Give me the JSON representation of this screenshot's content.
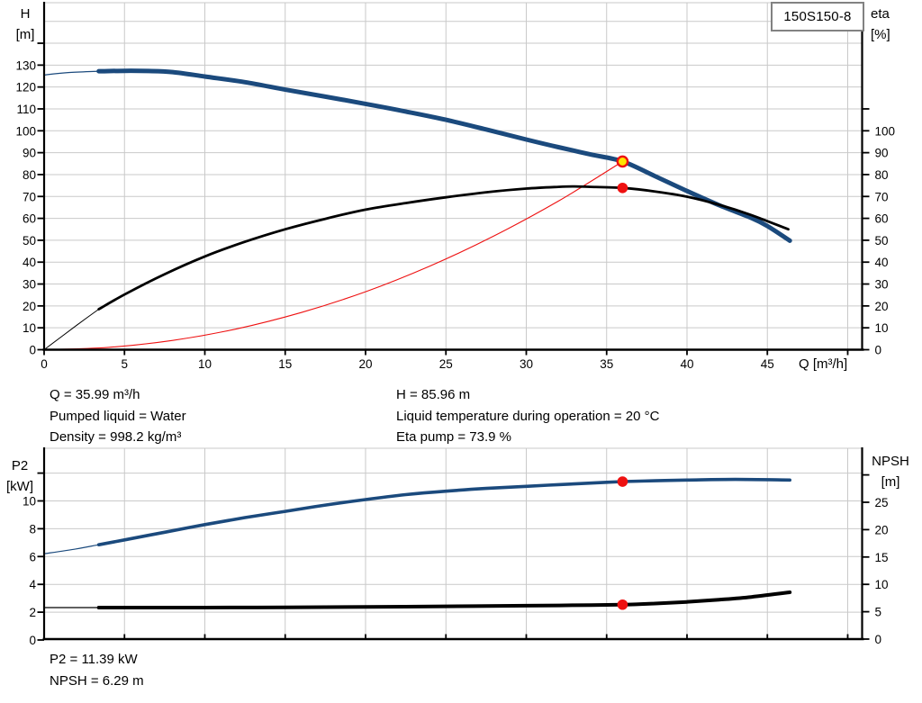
{
  "pump_type": "150S150-8",
  "annotations": {
    "left": [
      "Q = 35.99 m³/h",
      "Pumped liquid = Water",
      "Density = 998.2 kg/m³"
    ],
    "right": [
      "H = 85.96 m",
      "Liquid temperature during operation = 20 °C",
      "Eta pump = 73.9 %"
    ],
    "bottom": [
      "P2 = 11.39 kW",
      "NPSH = 6.29 m"
    ]
  },
  "duty_point": {
    "q_m3h": 35.99,
    "h_m": 85.96,
    "eta_pct": 73.9,
    "p2_kw": 11.39,
    "npsh_m": 6.29
  },
  "colors": {
    "curve_blue": "#1B4A7D",
    "curve_black": "#000000",
    "system_red": "#EE1111",
    "marker_yellow": "#FFE500",
    "grid": "#C9C9C9"
  },
  "chart_data": [
    {
      "name": "qh-eta-chart",
      "type": "line",
      "title": "150S150-8",
      "x_axis": {
        "label": "Q [m³/h]",
        "ticks": [
          0,
          5,
          10,
          15,
          20,
          25,
          30,
          35,
          40,
          45
        ],
        "unlabeled_ticks": [
          50
        ],
        "range": [
          0,
          50.9
        ]
      },
      "y_left": {
        "label": "H",
        "unit": "[m]",
        "ticks": [
          0,
          10,
          20,
          30,
          40,
          50,
          60,
          70,
          80,
          90,
          100,
          110,
          120,
          130
        ],
        "unlabeled_ticks": [
          140
        ],
        "range": [
          0,
          158
        ]
      },
      "y_right": {
        "label": "eta",
        "unit": "[%]",
        "ticks": [
          0,
          10,
          20,
          30,
          40,
          50,
          60,
          70,
          80,
          90,
          100
        ],
        "unlabeled_ticks": [
          110
        ],
        "range": [
          0,
          158
        ]
      },
      "series": [
        {
          "name": "system-curve",
          "axis": "left",
          "color": "#EE1111",
          "width": 1.1,
          "points": [
            [
              0,
              0
            ],
            [
              4,
              1.06
            ],
            [
              8,
              4.25
            ],
            [
              12,
              9.55
            ],
            [
              16,
              17.0
            ],
            [
              20,
              26.5
            ],
            [
              24,
              38.2
            ],
            [
              28,
              52.0
            ],
            [
              32,
              67.9
            ],
            [
              35.99,
              85.96
            ]
          ]
        },
        {
          "name": "head-curve",
          "axis": "left",
          "color": "#1B4A7D",
          "width": 5,
          "thin_width": 1.2,
          "thin_until": 3.4,
          "points": [
            [
              0,
              125.5
            ],
            [
              1.5,
              126.6
            ],
            [
              3.4,
              127.2
            ],
            [
              5,
              127.4
            ],
            [
              6.5,
              127.3
            ],
            [
              8,
              126.8
            ],
            [
              10,
              124.8
            ],
            [
              12.5,
              122.2
            ],
            [
              15,
              118.8
            ],
            [
              17.5,
              115.6
            ],
            [
              20,
              112.3
            ],
            [
              22.5,
              108.8
            ],
            [
              25,
              105.0
            ],
            [
              27.5,
              100.6
            ],
            [
              30,
              96.0
            ],
            [
              32,
              92.5
            ],
            [
              34,
              89.2
            ],
            [
              36,
              85.96
            ],
            [
              38,
              79.3
            ],
            [
              40,
              72.5
            ],
            [
              42,
              66.0
            ],
            [
              44,
              60.2
            ],
            [
              45,
              56.5
            ],
            [
              46.4,
              49.8
            ]
          ]
        },
        {
          "name": "efficiency-curve",
          "axis": "right",
          "color": "#000000",
          "width": 2.8,
          "thin_width": 1,
          "thin_until": 3.4,
          "points": [
            [
              0,
              0
            ],
            [
              2,
              11
            ],
            [
              3.4,
              18.5
            ],
            [
              5,
              25.2
            ],
            [
              7.5,
              34.5
            ],
            [
              10,
              42.6
            ],
            [
              12.5,
              49.3
            ],
            [
              15,
              55.0
            ],
            [
              17.5,
              59.8
            ],
            [
              20,
              64.0
            ],
            [
              22.5,
              67.0
            ],
            [
              25,
              69.6
            ],
            [
              27.5,
              71.9
            ],
            [
              30,
              73.6
            ],
            [
              32,
              74.4
            ],
            [
              33,
              74.6
            ],
            [
              34,
              74.4
            ],
            [
              36,
              73.9
            ],
            [
              38,
              72.3
            ],
            [
              40,
              69.9
            ],
            [
              42,
              66.2
            ],
            [
              44,
              61.5
            ],
            [
              46.3,
              55.0
            ]
          ]
        }
      ],
      "markers": [
        {
          "name": "duty-point-head",
          "q": 35.99,
          "value": 85.96,
          "axis": "left",
          "fill": "#FFE500",
          "stroke": "#EE1111",
          "stroke_width": 2.4,
          "r": 5.6
        },
        {
          "name": "duty-point-eta",
          "q": 35.99,
          "value": 73.9,
          "axis": "right",
          "fill": "#EE1111",
          "r": 5.8
        }
      ]
    },
    {
      "name": "p2-npsh-chart",
      "type": "line",
      "x_axis": {
        "label": "",
        "ticks": [],
        "unlabeled_ticks": [
          0,
          5,
          10,
          15,
          20,
          25,
          30,
          35,
          40,
          45,
          50
        ],
        "range": [
          0,
          50.9
        ]
      },
      "y_left": {
        "label": "P2",
        "unit": "[kW]",
        "ticks": [
          0,
          2,
          4,
          6,
          8,
          10
        ],
        "unlabeled_ticks": [
          12
        ],
        "range": [
          0,
          13.8
        ]
      },
      "y_right": {
        "label": "NPSH",
        "unit": "[m]",
        "ticks": [
          0,
          5,
          10,
          15,
          20,
          25
        ],
        "unlabeled_ticks": [
          30
        ],
        "range": [
          0,
          34.9
        ]
      },
      "series": [
        {
          "name": "power-curve",
          "axis": "left",
          "color": "#1B4A7D",
          "width": 3.6,
          "thin_width": 1.2,
          "thin_until": 3.4,
          "points": [
            [
              0,
              6.2
            ],
            [
              2,
              6.55
            ],
            [
              3.4,
              6.85
            ],
            [
              5,
              7.2
            ],
            [
              7.5,
              7.75
            ],
            [
              10,
              8.3
            ],
            [
              12.5,
              8.8
            ],
            [
              15,
              9.25
            ],
            [
              17.5,
              9.7
            ],
            [
              20,
              10.1
            ],
            [
              22.5,
              10.45
            ],
            [
              25,
              10.7
            ],
            [
              27.5,
              10.9
            ],
            [
              30,
              11.05
            ],
            [
              32,
              11.17
            ],
            [
              34,
              11.28
            ],
            [
              36,
              11.39
            ],
            [
              38,
              11.45
            ],
            [
              40,
              11.5
            ],
            [
              43,
              11.55
            ],
            [
              46.4,
              11.5
            ]
          ]
        },
        {
          "name": "npsh-curve",
          "axis": "right",
          "color": "#000000",
          "width": 4,
          "thin_width": 1.2,
          "thin_until": 3.4,
          "points": [
            [
              0,
              5.75
            ],
            [
              3.4,
              5.75
            ],
            [
              7,
              5.75
            ],
            [
              10,
              5.76
            ],
            [
              15,
              5.8
            ],
            [
              20,
              5.88
            ],
            [
              25,
              5.98
            ],
            [
              30,
              6.1
            ],
            [
              33,
              6.18
            ],
            [
              36,
              6.29
            ],
            [
              38,
              6.5
            ],
            [
              40,
              6.8
            ],
            [
              42,
              7.2
            ],
            [
              44,
              7.7
            ],
            [
              46.4,
              8.55
            ]
          ]
        }
      ],
      "markers": [
        {
          "name": "duty-point-p2",
          "q": 35.99,
          "value": 11.39,
          "axis": "left",
          "fill": "#EE1111",
          "r": 5.8
        },
        {
          "name": "duty-point-npsh",
          "q": 35.99,
          "value": 6.29,
          "axis": "right",
          "fill": "#EE1111",
          "r": 5.8
        }
      ]
    }
  ]
}
